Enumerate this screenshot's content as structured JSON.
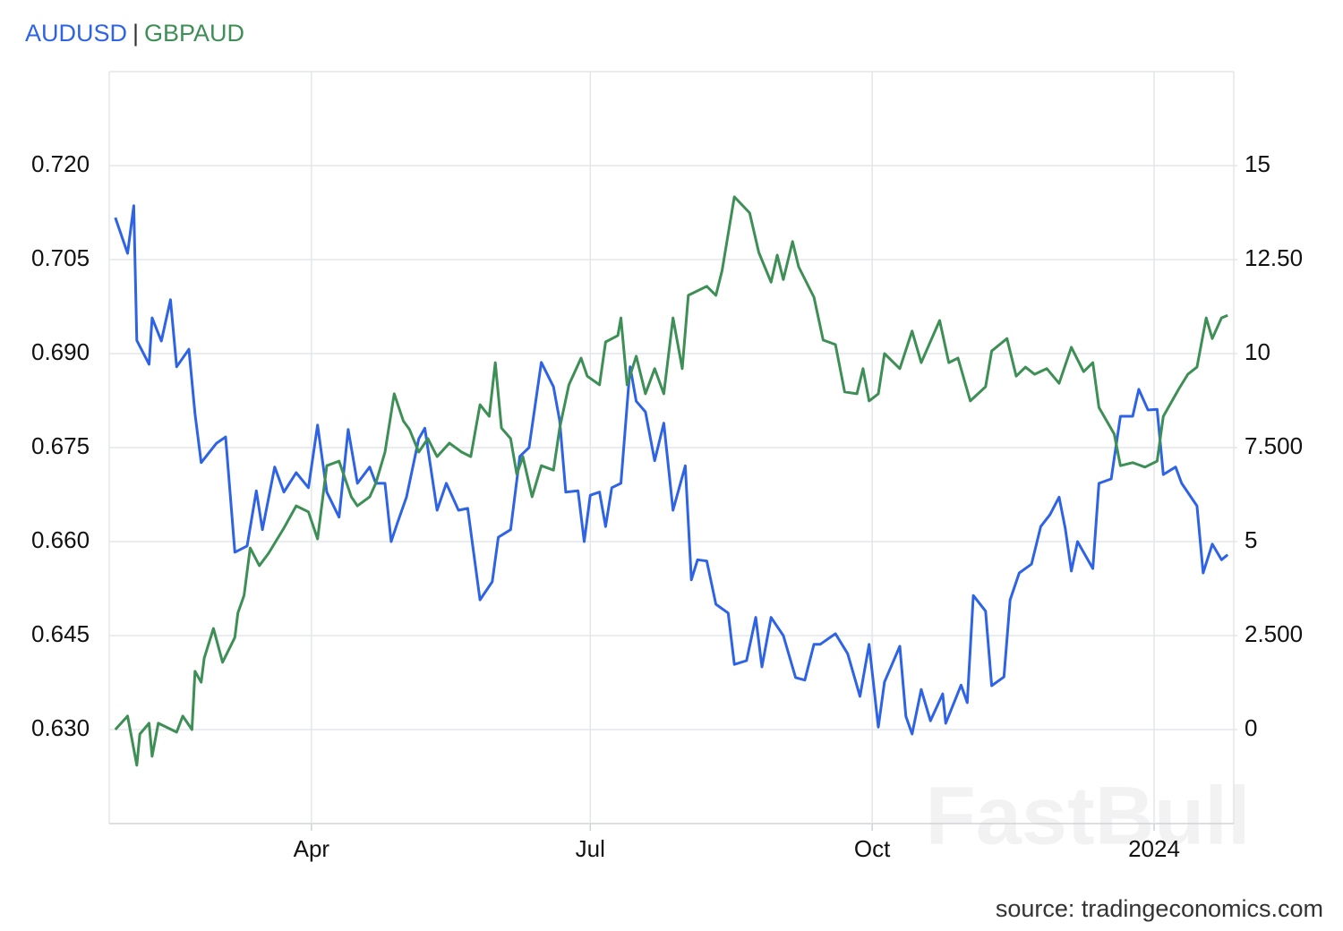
{
  "chart_data": {
    "type": "line",
    "legend_separator": "|",
    "source": "source: tradingeconomics.com",
    "watermark": "FastBull",
    "grid": true,
    "xlim": [
      24,
      391
    ],
    "xticks": [
      {
        "value": 90,
        "label": "Apr"
      },
      {
        "value": 181,
        "label": "Jul"
      },
      {
        "value": 273,
        "label": "Oct"
      },
      {
        "value": 365,
        "label": "2024"
      }
    ],
    "ylim": [
      0.615,
      0.735
    ],
    "yticks": [
      {
        "value": 0.63,
        "label": "0.630"
      },
      {
        "value": 0.645,
        "label": "0.645"
      },
      {
        "value": 0.66,
        "label": "0.660"
      },
      {
        "value": 0.675,
        "label": "0.675"
      },
      {
        "value": 0.69,
        "label": "0.690"
      },
      {
        "value": 0.705,
        "label": "0.705"
      },
      {
        "value": 0.72,
        "label": "0.720"
      }
    ],
    "y2lim": [
      -2.5,
      17.5
    ],
    "y2ticks": [
      0,
      {
        "value": 2.5,
        "label": "2.500"
      },
      5,
      {
        "value": 7.5,
        "label": "7.500"
      },
      10,
      {
        "value": 12.5,
        "label": "12.50"
      },
      15
    ],
    "series": [
      {
        "name": "AUDUSD",
        "color": "#2e63e6",
        "x": [
          26,
          30,
          32,
          33,
          37,
          38,
          41,
          44,
          46,
          50,
          52,
          54,
          59,
          62,
          65,
          69,
          72,
          74,
          78,
          81,
          85,
          89,
          92,
          95,
          99,
          102,
          105,
          109,
          111,
          114,
          116,
          118,
          121,
          125,
          127,
          131,
          134,
          138,
          141,
          145,
          149,
          151,
          155,
          158,
          161,
          165,
          169,
          171,
          173,
          177,
          179,
          181,
          184,
          186,
          188,
          191,
          194,
          196,
          199,
          202,
          205,
          208,
          212,
          214,
          216,
          219,
          222,
          226,
          228,
          232,
          235,
          237,
          240,
          244,
          248,
          251,
          254,
          256,
          261,
          265,
          269,
          272,
          275,
          277,
          282,
          284,
          286,
          289,
          292,
          296,
          297,
          302,
          304,
          306,
          310,
          312,
          316,
          318,
          321,
          325,
          328,
          331,
          334,
          336,
          338,
          340,
          345,
          347,
          351,
          354,
          358,
          360,
          363,
          366,
          368,
          372,
          374,
          379,
          381,
          384,
          387,
          389
        ],
        "values": [
          0.7117,
          0.706,
          0.7136,
          0.6921,
          0.6883,
          0.6957,
          0.692,
          0.6986,
          0.6879,
          0.6907,
          0.6804,
          0.6726,
          0.6757,
          0.6767,
          0.6583,
          0.6593,
          0.6681,
          0.6619,
          0.6719,
          0.6679,
          0.671,
          0.6686,
          0.6786,
          0.6679,
          0.6639,
          0.6779,
          0.6693,
          0.6719,
          0.6693,
          0.6693,
          0.66,
          0.6629,
          0.6671,
          0.6764,
          0.6781,
          0.665,
          0.6693,
          0.665,
          0.6653,
          0.6507,
          0.6536,
          0.6607,
          0.6619,
          0.6736,
          0.675,
          0.6886,
          0.6847,
          0.6793,
          0.6679,
          0.6681,
          0.66,
          0.6674,
          0.6679,
          0.6624,
          0.6686,
          0.6693,
          0.6879,
          0.6824,
          0.6807,
          0.6729,
          0.6789,
          0.665,
          0.6721,
          0.6539,
          0.6571,
          0.6569,
          0.65,
          0.6486,
          0.6404,
          0.641,
          0.6479,
          0.64,
          0.6479,
          0.645,
          0.6383,
          0.6379,
          0.6436,
          0.6436,
          0.6453,
          0.6421,
          0.6353,
          0.6436,
          0.6304,
          0.6376,
          0.6433,
          0.6321,
          0.6293,
          0.6364,
          0.6314,
          0.6357,
          0.631,
          0.6371,
          0.6343,
          0.6514,
          0.6489,
          0.637,
          0.6384,
          0.6507,
          0.655,
          0.6564,
          0.6624,
          0.6643,
          0.6671,
          0.6621,
          0.6553,
          0.66,
          0.6557,
          0.6693,
          0.67,
          0.68,
          0.68,
          0.6843,
          0.681,
          0.6811,
          0.6707,
          0.6719,
          0.6693,
          0.6657,
          0.655,
          0.6596,
          0.6571,
          0.6579
        ]
      },
      {
        "name": "GBPAUD",
        "color": "#3d8f55",
        "axis": "y2",
        "x": [
          26,
          30,
          33,
          34,
          37,
          38,
          40,
          46,
          48,
          51,
          52,
          54,
          55,
          58,
          61,
          65,
          66,
          68,
          70,
          73,
          76,
          81,
          85,
          89,
          92,
          95,
          99,
          103,
          105,
          109,
          111,
          114,
          117,
          120,
          122,
          125,
          128,
          131,
          135,
          139,
          142,
          145,
          148,
          150,
          152,
          155,
          157,
          159,
          162,
          165,
          169,
          171,
          174,
          178,
          180,
          184,
          186,
          190,
          191,
          193,
          196,
          199,
          202,
          205,
          208,
          211,
          213,
          219,
          222,
          224,
          228,
          233,
          236,
          240,
          242,
          244,
          247,
          249,
          254,
          257,
          261,
          264,
          268,
          270,
          272,
          275,
          277,
          282,
          286,
          289,
          295,
          298,
          301,
          305,
          310,
          312,
          317,
          320,
          323,
          326,
          330,
          334,
          338,
          342,
          345,
          347,
          352,
          354,
          358,
          362,
          366,
          368,
          373,
          376,
          379,
          382,
          384,
          387,
          389
        ],
        "values": [
          0,
          0.36,
          -0.95,
          -0.12,
          0.17,
          -0.71,
          0.17,
          -0.07,
          0.36,
          0,
          1.55,
          1.26,
          1.9,
          2.69,
          1.79,
          2.45,
          3.1,
          3.57,
          4.83,
          4.36,
          4.69,
          5.36,
          5.95,
          5.79,
          5.07,
          7.02,
          7.14,
          6.19,
          5.95,
          6.19,
          6.55,
          7.38,
          8.93,
          8.21,
          7.98,
          7.38,
          7.74,
          7.26,
          7.62,
          7.38,
          7.26,
          8.64,
          8.33,
          9.76,
          8.02,
          7.74,
          6.79,
          7.26,
          6.19,
          7.02,
          6.9,
          8.02,
          9.17,
          9.88,
          9.4,
          9.17,
          10.31,
          10.48,
          10.95,
          9.17,
          9.93,
          8.93,
          9.6,
          8.93,
          10.95,
          9.6,
          11.55,
          11.79,
          11.55,
          12.21,
          14.17,
          13.74,
          12.69,
          11.9,
          12.62,
          11.97,
          12.98,
          12.31,
          11.5,
          10.36,
          10.24,
          8.98,
          8.93,
          9.6,
          8.74,
          8.93,
          10,
          9.6,
          10.6,
          9.76,
          10.88,
          9.76,
          9.88,
          8.74,
          9.12,
          10.07,
          10.4,
          9.4,
          9.64,
          9.45,
          9.6,
          9.21,
          10.17,
          9.52,
          9.76,
          8.57,
          7.86,
          7.02,
          7.1,
          6.98,
          7.14,
          8.33,
          9.05,
          9.45,
          9.64,
          10.95,
          10.4,
          10.95,
          11.02
        ]
      }
    ]
  }
}
